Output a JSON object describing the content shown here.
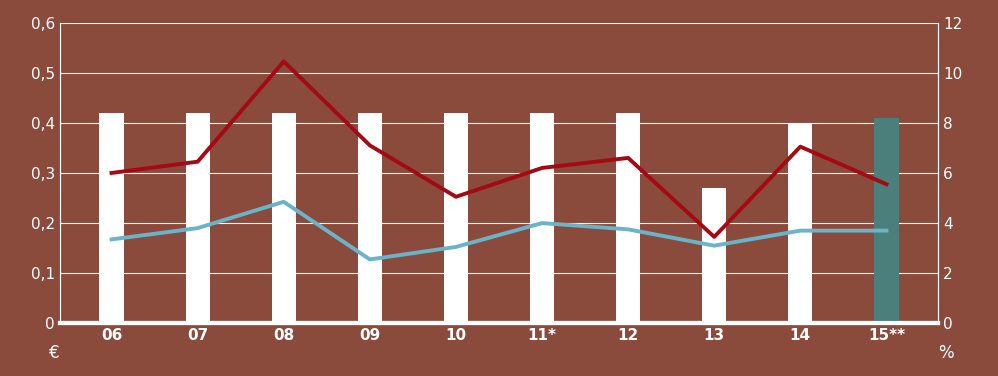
{
  "chart_data": {
    "type": "bar",
    "categories": [
      "06",
      "07",
      "08",
      "09",
      "10",
      "11*",
      "12",
      "13",
      "14",
      "15**"
    ],
    "series": [
      {
        "type": "bar",
        "colors": [
          "#ffffff",
          "#ffffff",
          "#ffffff",
          "#ffffff",
          "#ffffff",
          "#ffffff",
          "#ffffff",
          "#ffffff",
          "#ffffff",
          "#4a7f7c"
        ],
        "values": [
          0.42,
          0.42,
          0.42,
          0.42,
          0.42,
          0.42,
          0.42,
          0.27,
          0.4,
          0.41
        ]
      },
      {
        "type": "line",
        "color": "#a50a14",
        "axis": "y2",
        "values": [
          6.0,
          6.45,
          10.45,
          7.1,
          5.05,
          6.2,
          6.6,
          3.45,
          7.05,
          5.55
        ]
      },
      {
        "type": "line",
        "color": "#6ab3c8",
        "axis": "y2",
        "values": [
          3.35,
          3.8,
          4.85,
          2.55,
          3.05,
          4.0,
          3.75,
          3.1,
          3.7,
          3.7
        ]
      }
    ],
    "ylabel": "€",
    "y2label": "%",
    "ylim": [
      0,
      0.6
    ],
    "yticks": [
      0,
      {
        "value": 0.1,
        "label": "0,1"
      },
      {
        "value": 0.2,
        "label": "0,2"
      },
      {
        "value": 0.3,
        "label": "0,3"
      },
      {
        "value": 0.4,
        "label": "0,4"
      },
      {
        "value": 0.5,
        "label": "0,5"
      },
      {
        "value": 0.6,
        "label": "0,6"
      }
    ],
    "y2lim": [
      0,
      12
    ],
    "y2ticks": [
      0,
      2,
      4,
      6,
      8,
      10,
      12
    ],
    "grid": true
  }
}
